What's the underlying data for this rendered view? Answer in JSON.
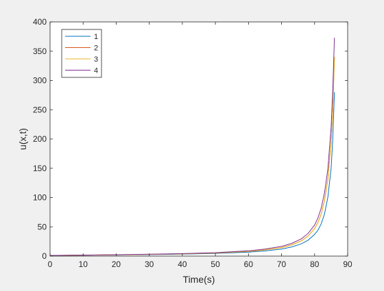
{
  "chart_data": {
    "type": "line",
    "title": "",
    "xlabel": "Time(s)",
    "ylabel": "u(x,t)",
    "xlim": [
      0,
      90
    ],
    "ylim": [
      0,
      400
    ],
    "xticks": [
      0,
      10,
      20,
      30,
      40,
      50,
      60,
      70,
      80,
      90
    ],
    "yticks": [
      0,
      50,
      100,
      150,
      200,
      250,
      300,
      350,
      400
    ],
    "grid": false,
    "legend_position": "top-left",
    "series": [
      {
        "name": "1",
        "color": "#0072bd",
        "x": [
          0,
          10,
          20,
          30,
          40,
          50,
          60,
          65,
          70,
          73,
          76,
          78,
          80,
          81,
          82,
          83,
          84,
          85,
          85.5,
          86
        ],
        "y": [
          1,
          1.5,
          2,
          2.6,
          3.3,
          4.5,
          6.8,
          8.8,
          12,
          15.5,
          21,
          27,
          37,
          44,
          55,
          72,
          100,
          150,
          200,
          280
        ]
      },
      {
        "name": "2",
        "color": "#d95319",
        "x": [
          0,
          10,
          20,
          30,
          40,
          50,
          60,
          65,
          70,
          73,
          76,
          78,
          80,
          81,
          82,
          83,
          84,
          85,
          85.5,
          86
        ],
        "y": [
          1,
          1.6,
          2.2,
          2.9,
          3.8,
          5.2,
          8,
          10.5,
          14.5,
          19,
          26,
          34,
          47,
          57,
          72,
          95,
          130,
          195,
          250,
          340
        ]
      },
      {
        "name": "3",
        "color": "#edb120",
        "x": [
          0,
          10,
          20,
          30,
          40,
          50,
          60,
          65,
          70,
          73,
          76,
          78,
          80,
          81,
          82,
          83,
          84,
          85,
          85.5,
          86
        ],
        "y": [
          1,
          1.6,
          2.2,
          2.9,
          3.8,
          5.2,
          8,
          10.5,
          14.5,
          19,
          26,
          34,
          47,
          57,
          72,
          95,
          130,
          195,
          250,
          340
        ]
      },
      {
        "name": "4",
        "color": "#7e2f8e",
        "x": [
          0,
          10,
          20,
          30,
          40,
          50,
          60,
          65,
          70,
          73,
          76,
          78,
          80,
          81,
          82,
          83,
          84,
          85,
          85.5,
          86
        ],
        "y": [
          1,
          1.7,
          2.4,
          3.2,
          4.2,
          5.8,
          9,
          12,
          16.5,
          21.5,
          29.5,
          38.5,
          53,
          65,
          82,
          108,
          148,
          220,
          285,
          373
        ]
      }
    ]
  }
}
